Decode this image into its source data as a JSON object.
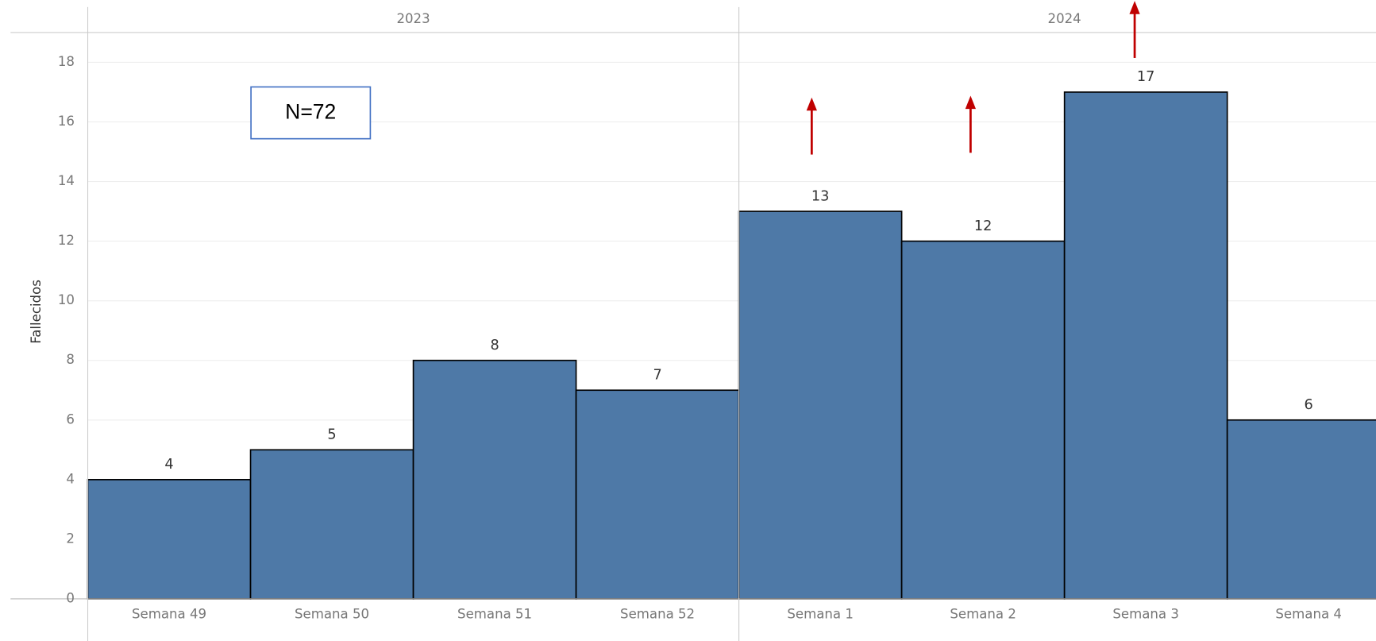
{
  "chart_data": {
    "type": "bar",
    "y_label": "Fallecidos",
    "x_groups": [
      "2023",
      "2024"
    ],
    "categories": [
      "Semana 49",
      "Semana 50",
      "Semana 51",
      "Semana 52",
      "Semana 1",
      "Semana 2",
      "Semana 3",
      "Semana 4"
    ],
    "values": [
      4,
      5,
      8,
      7,
      13,
      12,
      17,
      6
    ],
    "color": "#4e79a7",
    "ylim": [
      0,
      19
    ],
    "yticks": [
      0,
      2,
      4,
      6,
      8,
      10,
      12,
      14,
      16,
      18
    ],
    "grid": true,
    "annotations": [
      "N=72"
    ]
  }
}
